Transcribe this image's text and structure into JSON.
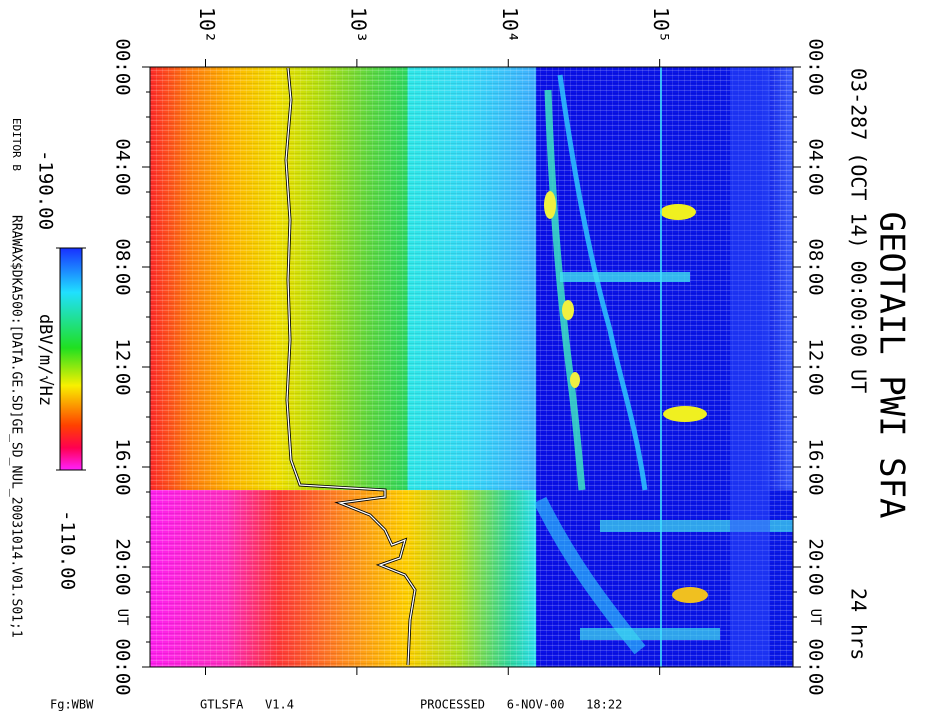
{
  "chart_data": {
    "type": "spectrogram",
    "title": "GEOTAIL PWI SFA",
    "subtitle": "03-287 (OCT 14) 00:00:00 UT",
    "duration": "24 hrs",
    "xscale": "log",
    "xlim": [
      43,
      760000
    ],
    "xticks": [
      {
        "value": 100,
        "label": "10²"
      },
      {
        "value": 1000,
        "label": "10³"
      },
      {
        "value": 10000,
        "label": "10⁴"
      },
      {
        "value": 100000,
        "label": "10⁵"
      }
    ],
    "time_ticks": [
      "00:00",
      "04:00",
      "08:00",
      "12:00",
      "16:00",
      "20:00",
      "00:00"
    ],
    "time_unit": "UT",
    "colorbar": {
      "label": "dBV/m/√Hz",
      "clim": [
        {
          "value": -190,
          "label": "-190.00"
        },
        {
          "value": -110,
          "label": "-110.00"
        }
      ]
    }
  },
  "side": {
    "editor": "EDITOR B",
    "file": "RRAWAX$DKA500:[DATA.GE.SD]GE_SD_NUL_20031014.V01.S01;1"
  },
  "footer": {
    "mode": "Fg:WBW",
    "program": "GTLSFA   V1.4",
    "processed": "PROCESSED   6-NOV-00   18:22"
  }
}
